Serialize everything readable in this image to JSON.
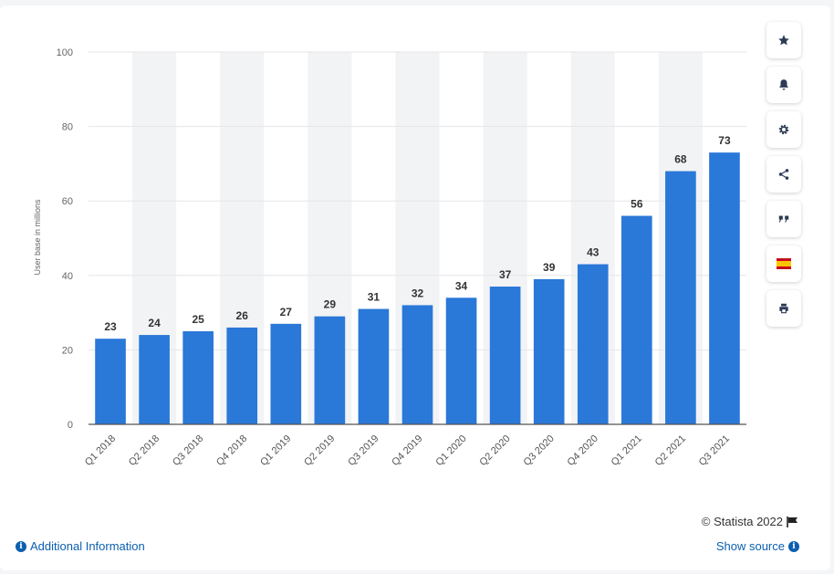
{
  "chart_data": {
    "type": "bar",
    "categories": [
      "Q1 2018",
      "Q2 2018",
      "Q3 2018",
      "Q4 2018",
      "Q1 2019",
      "Q2 2019",
      "Q3 2019",
      "Q4 2019",
      "Q1 2020",
      "Q2 2020",
      "Q3 2020",
      "Q4 2020",
      "Q1 2021",
      "Q2 2021",
      "Q3 2021"
    ],
    "values": [
      23,
      24,
      25,
      26,
      27,
      29,
      31,
      32,
      34,
      37,
      39,
      43,
      56,
      68,
      73
    ],
    "title": "",
    "xlabel": "",
    "ylabel": "User base in millions",
    "ylim": [
      0,
      100
    ],
    "yticks": [
      0,
      20,
      40,
      60,
      80,
      100
    ],
    "grid": true,
    "bar_color": "#2a78d8",
    "band_color": "#f2f3f5"
  },
  "footer": {
    "credit": "© Statista 2022",
    "additional_info": "Additional Information",
    "show_source": "Show source"
  },
  "toolbar": {
    "icons": [
      "star-icon",
      "bell-icon",
      "gear-icon",
      "share-icon",
      "quote-icon",
      "flag-icon",
      "print-icon"
    ]
  },
  "colors": {
    "accent": "#2a78d8",
    "link": "#0b5fb0"
  }
}
